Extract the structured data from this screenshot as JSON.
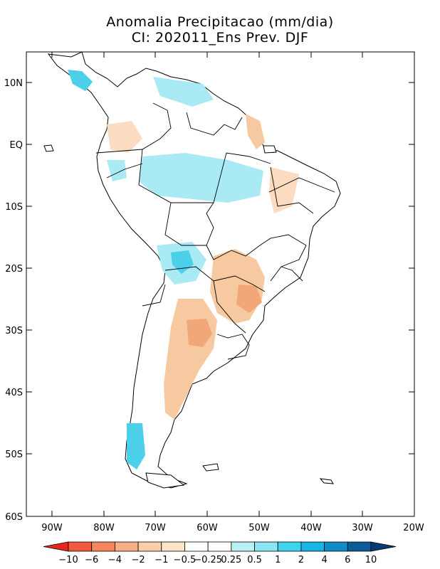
{
  "title_line1": "Anomalia Precipitacao (mm/dia)",
  "title_line2": "CI: 202011_Ens Prev. DJF",
  "lat_labels": [
    "10N",
    "EQ",
    "10S",
    "20S",
    "30S",
    "40S",
    "50S",
    "60S"
  ],
  "lon_labels": [
    "90W",
    "80W",
    "70W",
    "60W",
    "50W",
    "40W",
    "30W",
    "20W"
  ],
  "colorbar": {
    "labels": [
      "-10",
      "-6",
      "-4",
      "-2",
      "-1",
      "-0.5",
      "-0.25",
      "0.25",
      "0.5",
      "1",
      "2",
      "4",
      "6",
      "10"
    ],
    "colors": [
      "#e8261c",
      "#f2583d",
      "#f5865e",
      "#f8ae86",
      "#fbcda8",
      "#fde6c8",
      "#ffffff",
      "#ffffff",
      "#b8f0f5",
      "#8ae6f2",
      "#3fd4ee",
      "#18b5e2",
      "#0f8cc5",
      "#0b5d98",
      "#0a3a72"
    ]
  },
  "map": {
    "land_color": "#ffffff",
    "coast_color": "#000000",
    "dry_color": "#f7c9a0",
    "dry_strong_color": "#f2a779",
    "wet_color": "#a9eaf4",
    "wet_strong_color": "#4cd0ea"
  }
}
